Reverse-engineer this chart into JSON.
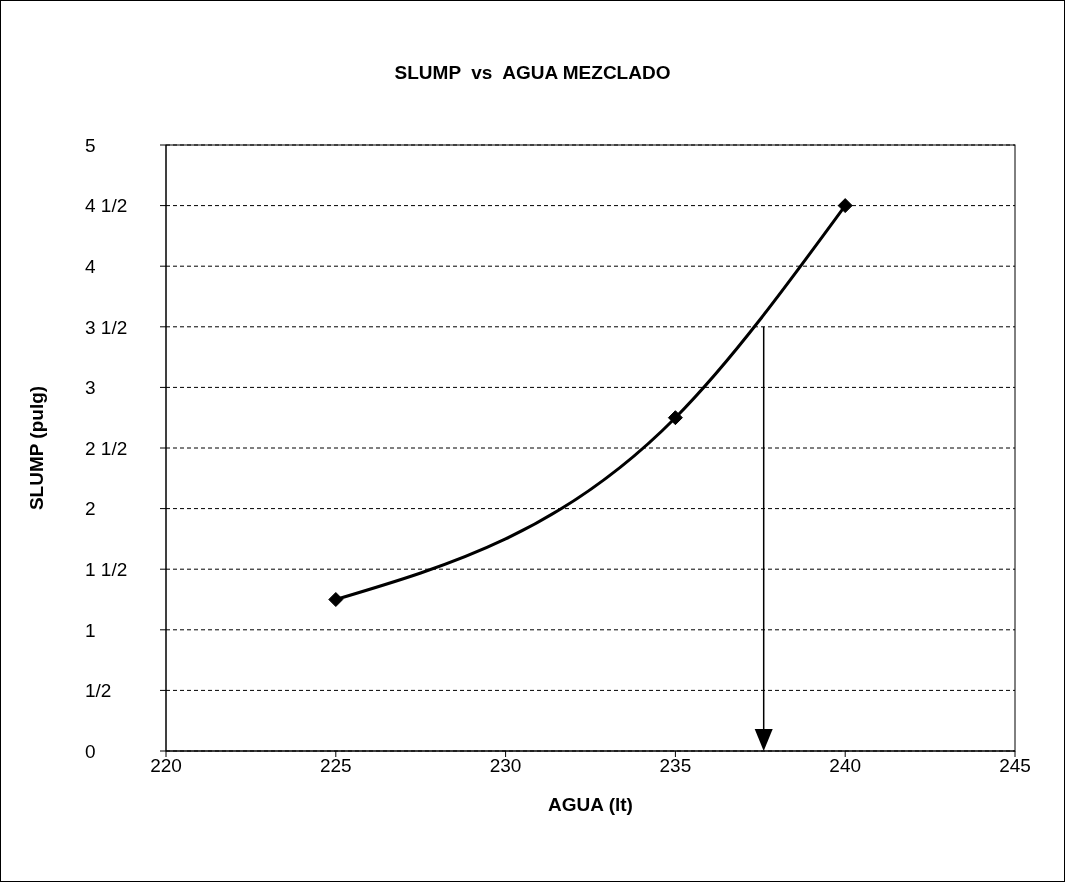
{
  "chart_data": {
    "type": "line",
    "title": "SLUMP  vs  AGUA MEZCLADO",
    "xlabel": "AGUA (lt)",
    "ylabel": "SLUMP (pulg)",
    "x": [
      225,
      235,
      240
    ],
    "series": [
      {
        "color": "#000000",
        "values": [
          1.25,
          2.75,
          4.5
        ],
        "marker": "diamond"
      }
    ],
    "xlim": [
      220,
      245
    ],
    "xticks": [
      220,
      225,
      230,
      235,
      240,
      245
    ],
    "ylim": [
      0,
      5
    ],
    "yticks": [
      0,
      {
        "value": 0.5,
        "label": "1/2"
      },
      1,
      {
        "value": 1.5,
        "label": "1 1/2"
      },
      2,
      {
        "value": 2.5,
        "label": "2 1/2"
      },
      3,
      {
        "value": 3.5,
        "label": "3 1/2"
      },
      4,
      {
        "value": 4.5,
        "label": "4 1/2"
      },
      5
    ],
    "grid": "y",
    "line_style": "solid"
  }
}
